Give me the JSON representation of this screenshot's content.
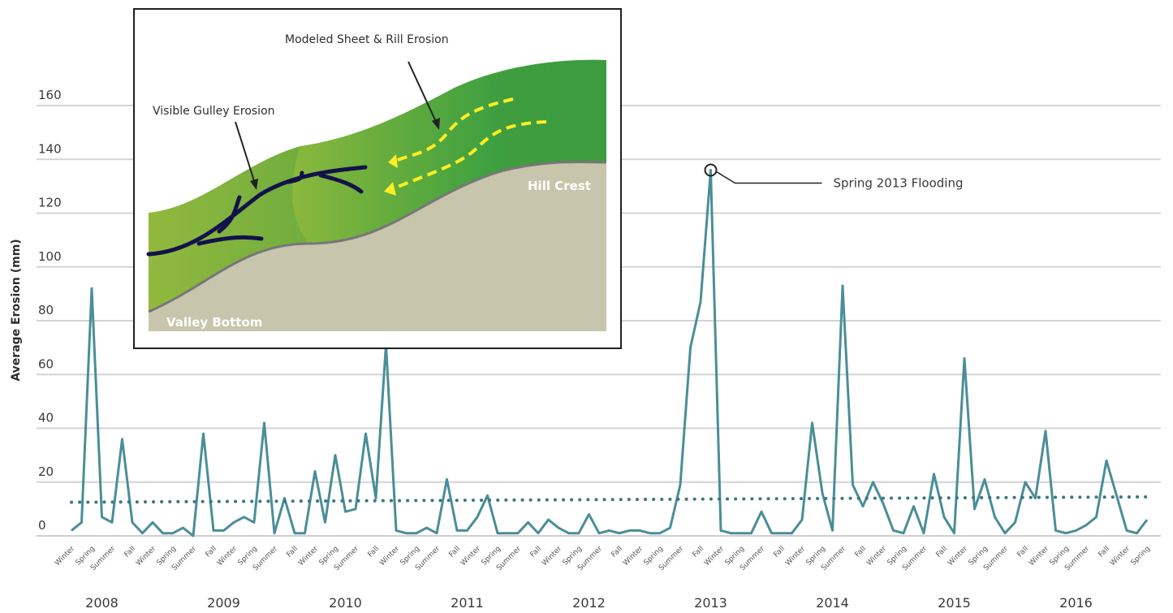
{
  "chart_data": {
    "type": "line",
    "title": "",
    "ylabel": "Average Erosion (mm)",
    "xlabel": "",
    "ylim": [
      0,
      160
    ],
    "yticks": [
      0,
      20,
      40,
      60,
      80,
      100,
      120,
      140,
      160
    ],
    "grid": "horizontal",
    "years": [
      "2008",
      "2009",
      "2010",
      "2011",
      "2012",
      "2013",
      "2014",
      "2015",
      "2016"
    ],
    "seasons": [
      "Winter",
      "Spring",
      "Summer",
      "Fall"
    ],
    "series": [
      {
        "color": "#4a8e98",
        "style": "solid",
        "values": [
          2,
          5,
          92,
          7,
          5,
          36,
          5,
          1,
          5,
          1,
          1,
          3,
          0,
          38,
          2,
          2,
          5,
          7,
          5,
          42,
          1,
          14,
          1,
          1,
          24,
          5,
          30,
          9,
          10,
          38,
          14,
          71,
          2,
          1,
          1,
          3,
          1,
          21,
          2,
          2,
          7,
          15,
          1,
          1,
          1,
          5,
          1,
          6,
          3,
          1,
          1,
          8,
          1,
          2,
          1,
          2,
          2,
          1,
          1,
          3,
          19,
          70,
          87,
          136,
          2,
          1,
          1,
          1,
          9,
          1,
          1,
          1,
          6,
          42,
          16,
          2,
          93,
          19,
          11,
          20,
          12,
          2,
          1,
          11,
          1,
          23,
          7,
          1,
          66,
          10,
          21,
          7,
          1,
          5,
          20,
          14,
          39,
          2,
          1,
          2,
          4,
          7,
          28,
          15,
          2,
          1,
          6
        ]
      },
      {
        "color": "#3d7780",
        "style": "dotted",
        "values": [
          12.5,
          14.5
        ]
      }
    ],
    "annotations": [
      {
        "text": "Spring 2013 Flooding",
        "target_value": 136
      }
    ]
  },
  "inset": {
    "labels": {
      "sheet_rill": "Modeled Sheet & Rill Erosion",
      "gulley": "Visible Gulley Erosion",
      "hill_crest": "Hill Crest",
      "valley_bottom": "Valley Bottom"
    }
  }
}
